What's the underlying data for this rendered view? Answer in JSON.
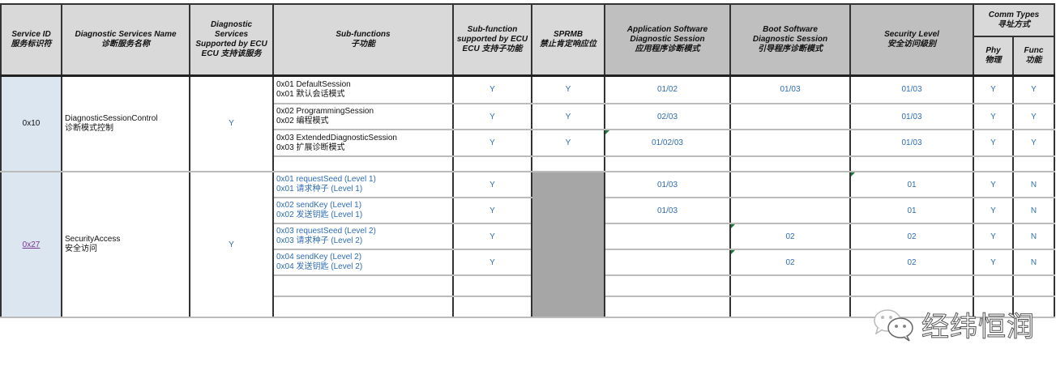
{
  "headers": {
    "service_id": [
      "Service ID",
      "服务标识符"
    ],
    "service_name": [
      "Diagnostic Services Name",
      "诊断服务名称"
    ],
    "supported": [
      "Diagnostic Services",
      "Supported by ECU",
      "ECU 支持该服务"
    ],
    "subfunctions": [
      "Sub-functions",
      "子功能"
    ],
    "sub_supported": [
      "Sub-function",
      "supported by ECU",
      "ECU 支持子功能"
    ],
    "sprmb": [
      "SPRMB",
      "禁止肯定响应位"
    ],
    "app_session": [
      "Application Software",
      "Diagnostic Session",
      "应用程序诊断模式"
    ],
    "boot_session": [
      "Boot Software",
      "Diagnostic Session",
      "引导程序诊断模式"
    ],
    "security": [
      "Security Level",
      "安全访问级别"
    ],
    "comm_types": [
      "Comm Types",
      "寻址方式"
    ],
    "phy": [
      "Phy",
      "物理"
    ],
    "func": [
      "Func",
      "功能"
    ]
  },
  "colors": {
    "header": "#d9d9d9",
    "header_dark": "#bfbfbf",
    "sid_cell": "#dce6f1",
    "value_text": "#2e6db8",
    "disabled": "#a6a6a6"
  },
  "services": [
    {
      "id": "0x10",
      "id_link": false,
      "name": [
        "DiagnosticSessionControl",
        "诊断模式控制"
      ],
      "supported": "Y",
      "sprmb_disabled": false,
      "sub_blue": false,
      "rows": [
        {
          "sub": [
            "0x01 DefaultSession",
            "0x01 默认会话模式"
          ],
          "sup": "Y",
          "sprmb": "Y",
          "app": "01/02",
          "boot": "01/03",
          "sec": "01/03",
          "phy": "Y",
          "func": "Y"
        },
        {
          "sub": [
            "0x02 ProgrammingSession",
            "0x02 编程模式"
          ],
          "sup": "Y",
          "sprmb": "Y",
          "app": "02/03",
          "boot": "",
          "sec": "01/03",
          "phy": "Y",
          "func": "Y"
        },
        {
          "sub": [
            "0x03 ExtendedDiagnosticSession",
            "0x03 扩展诊断模式"
          ],
          "sup": "Y",
          "sprmb": "Y",
          "app": "01/02/03",
          "boot": "",
          "sec": "01/03",
          "phy": "Y",
          "func": "Y",
          "note_app": true
        },
        {
          "sub": [
            "",
            ""
          ],
          "sup": "",
          "sprmb": "",
          "app": "",
          "boot": "",
          "sec": "",
          "phy": "",
          "func": ""
        }
      ]
    },
    {
      "id": "0x27",
      "id_link": true,
      "name": [
        "SecurityAccess",
        "安全访问"
      ],
      "supported": "Y",
      "sprmb_disabled": true,
      "sub_blue": true,
      "rows": [
        {
          "sub": [
            "0x01 requestSeed (Level 1)",
            "0x01 请求种子 (Level 1)"
          ],
          "sup": "Y",
          "app": "01/03",
          "boot": "",
          "sec": "01",
          "phy": "Y",
          "func": "N",
          "note_sec": true
        },
        {
          "sub": [
            "0x02 sendKey (Level 1)",
            "0x02 发送钥匙 (Level 1)"
          ],
          "sup": "Y",
          "app": "01/03",
          "boot": "",
          "sec": "01",
          "phy": "Y",
          "func": "N"
        },
        {
          "sub": [
            "0x03 requestSeed (Level 2)",
            "0x03 请求种子 (Level 2)"
          ],
          "sup": "Y",
          "app": "",
          "boot": "02",
          "sec": "02",
          "phy": "Y",
          "func": "N",
          "note_boot": true
        },
        {
          "sub": [
            "0x04 sendKey (Level 2)",
            "0x04 发送钥匙 (Level 2)"
          ],
          "sup": "Y",
          "app": "",
          "boot": "02",
          "sec": "02",
          "phy": "Y",
          "func": "N",
          "note_boot": true
        },
        {
          "sub": [
            "",
            ""
          ],
          "sup": "",
          "app": "",
          "boot": "",
          "sec": "",
          "phy": "",
          "func": ""
        },
        {
          "sub": [
            "",
            ""
          ],
          "sup": "",
          "app": "",
          "boot": "",
          "sec": "",
          "phy": "",
          "func": ""
        }
      ]
    }
  ],
  "watermark": {
    "text": "经纬恒润",
    "icon": "wechat-icon"
  }
}
